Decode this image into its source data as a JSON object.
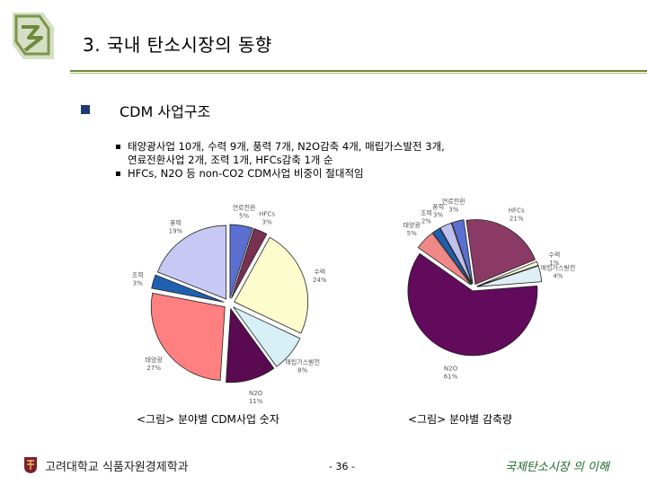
{
  "header": {
    "title": "3. 국내 탄소시장의 동향"
  },
  "section": {
    "title": "CDM 사업구조"
  },
  "bullets": [
    "태양광사업 10개, 수력 9개, 풍력 7개, N2O감축 4개, 매립가스발전 3개,",
    "연료전환사업 2개, 조력 1개, HFCs감축 1개 순",
    "HFCs, N2O 등 non-CO2 CDM사업 비중이 절대적임"
  ],
  "captions": {
    "left": "<그림> 분야별 CDM사업 숫자",
    "right": "<그림> 분야별 감축량"
  },
  "footer": {
    "left": "고려대학교 식품자원경제학과",
    "page": "- 36 -",
    "right": "국제탄소시장 의 이해"
  },
  "colors": {
    "rule": "#6d8a3a",
    "bullet": "#1f3b73",
    "footer_right": "#1e6a2e"
  },
  "chart_data": [
    {
      "type": "pie",
      "title": "<그림> 분야별 CDM사업 숫자",
      "slices": [
        {
          "label": "연료전환",
          "pct": 5,
          "color": "#5a6fd0"
        },
        {
          "label": "HFCs",
          "pct": 3,
          "color": "#7a3050"
        },
        {
          "label": "수력",
          "pct": 24,
          "color": "#fdfccc"
        },
        {
          "label": "매립가스발전",
          "pct": 8,
          "color": "#d6f0f6"
        },
        {
          "label": "N2O",
          "pct": 11,
          "color": "#5a0a50"
        },
        {
          "label": "태양광",
          "pct": 27,
          "color": "#ff8080"
        },
        {
          "label": "조력",
          "pct": 3,
          "color": "#2060b0"
        },
        {
          "label": "풍력",
          "pct": 19,
          "color": "#c8c8f4"
        }
      ]
    },
    {
      "type": "pie",
      "title": "<그림> 분야별 감축량",
      "slices": [
        {
          "label": "HFCs",
          "pct": 21,
          "color": "#8a3a64"
        },
        {
          "label": "수력",
          "pct": 1,
          "color": "#f6f6d4"
        },
        {
          "label": "매립가스발전",
          "pct": 4,
          "color": "#dfeff6"
        },
        {
          "label": "N2O",
          "pct": 61,
          "color": "#620a5c"
        },
        {
          "label": "태양광",
          "pct": 5,
          "color": "#f08888"
        },
        {
          "label": "조력",
          "pct": 2,
          "color": "#2060b0"
        },
        {
          "label": "풍력",
          "pct": 3,
          "color": "#c0c0ec"
        },
        {
          "label": "연료전환",
          "pct": 3,
          "color": "#5a6fd0"
        }
      ]
    }
  ]
}
